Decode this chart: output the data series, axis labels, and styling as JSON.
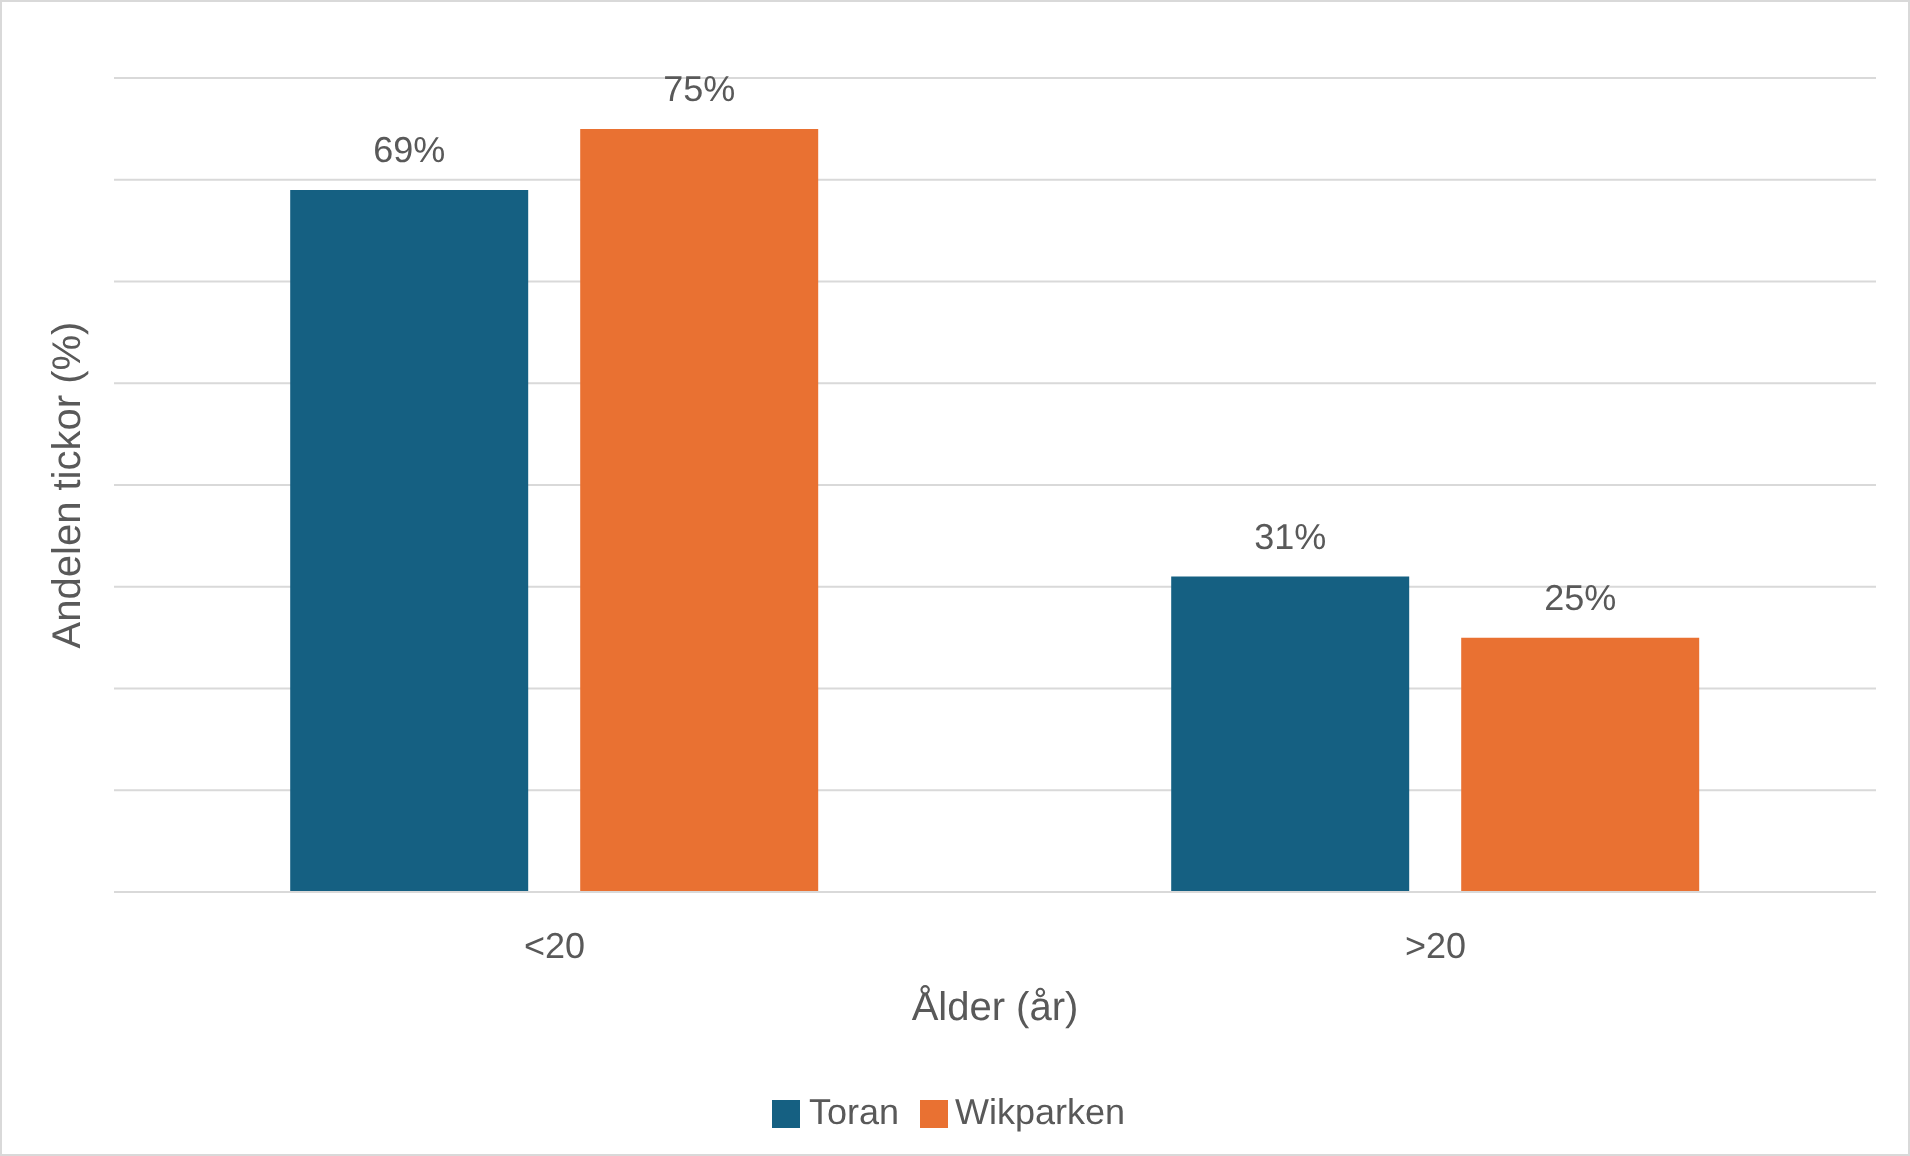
{
  "chart_data": {
    "type": "bar",
    "categories": [
      "<20",
      ">20"
    ],
    "series": [
      {
        "name": "Toran",
        "color": "#156082",
        "values": [
          69,
          31
        ],
        "value_labels": [
          "69%",
          "31%"
        ]
      },
      {
        "name": "Wikparken",
        "color": "#e97132",
        "values": [
          75,
          25
        ],
        "value_labels": [
          "75%",
          "25%"
        ]
      }
    ],
    "xlabel": "Ålder (år)",
    "ylabel": "Andelen tickor (%)",
    "ylim": [
      0,
      80
    ],
    "yticks": [
      {
        "value": 0,
        "label": null
      },
      {
        "value": 10,
        "label": null
      },
      {
        "value": 20,
        "label": null
      },
      {
        "value": 30,
        "label": null
      },
      {
        "value": 40,
        "label": null
      },
      {
        "value": 50,
        "label": null
      },
      {
        "value": 60,
        "label": null
      },
      {
        "value": 70,
        "label": null
      },
      {
        "value": 80,
        "label": null
      }
    ],
    "tick_labels": "x",
    "grid": "y",
    "legend": "bottom"
  }
}
